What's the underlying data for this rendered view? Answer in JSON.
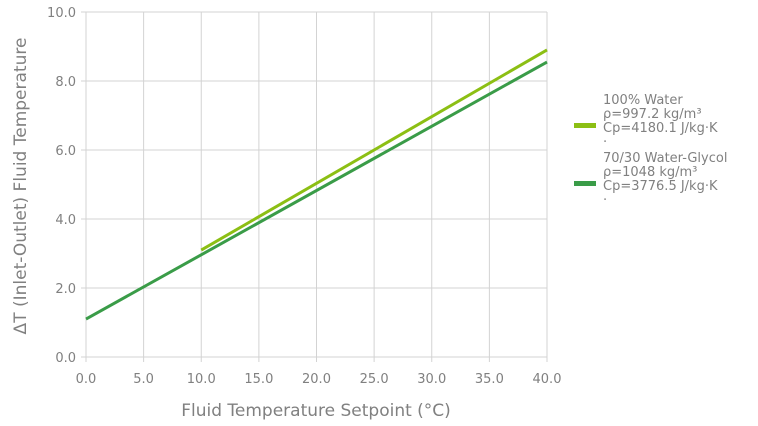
{
  "chart_data": {
    "type": "line",
    "xlabel": "Fluid Temperature Setpoint (°C)",
    "ylabel": "ΔT (Inlet-Outlet) Fluid Temperature",
    "xlim": [
      0,
      40
    ],
    "ylim": [
      0,
      10
    ],
    "x_ticks": [
      "0.0",
      "5.0",
      "10.0",
      "15.0",
      "20.0",
      "25.0",
      "30.0",
      "35.0",
      "40.0"
    ],
    "y_ticks": [
      "0.0",
      "2.0",
      "4.0",
      "6.0",
      "8.0",
      "10.0"
    ],
    "grid": true,
    "legend_position": "right",
    "series": [
      {
        "name": "100% Water ρ=997.2 kg/m³ Cp=4180.1 J/kg·K ·",
        "label_lines": [
          "100% Water",
          "ρ=997.2 kg/m³",
          "Cp=4180.1 J/kg·K",
          "·"
        ],
        "color": "#8cbf14",
        "x": [
          10,
          40
        ],
        "y": [
          3.1,
          8.9
        ]
      },
      {
        "name": "70/30 Water-Glycol ρ=1048 kg/m³ Cp=3776.5 J/kg·K ·",
        "label_lines": [
          "70/30 Water-Glycol",
          "ρ=1048 kg/m³",
          "Cp=3776.5 J/kg·K",
          "·"
        ],
        "color": "#3a9c48",
        "x": [
          0,
          40
        ],
        "y": [
          1.1,
          8.55
        ]
      }
    ]
  }
}
